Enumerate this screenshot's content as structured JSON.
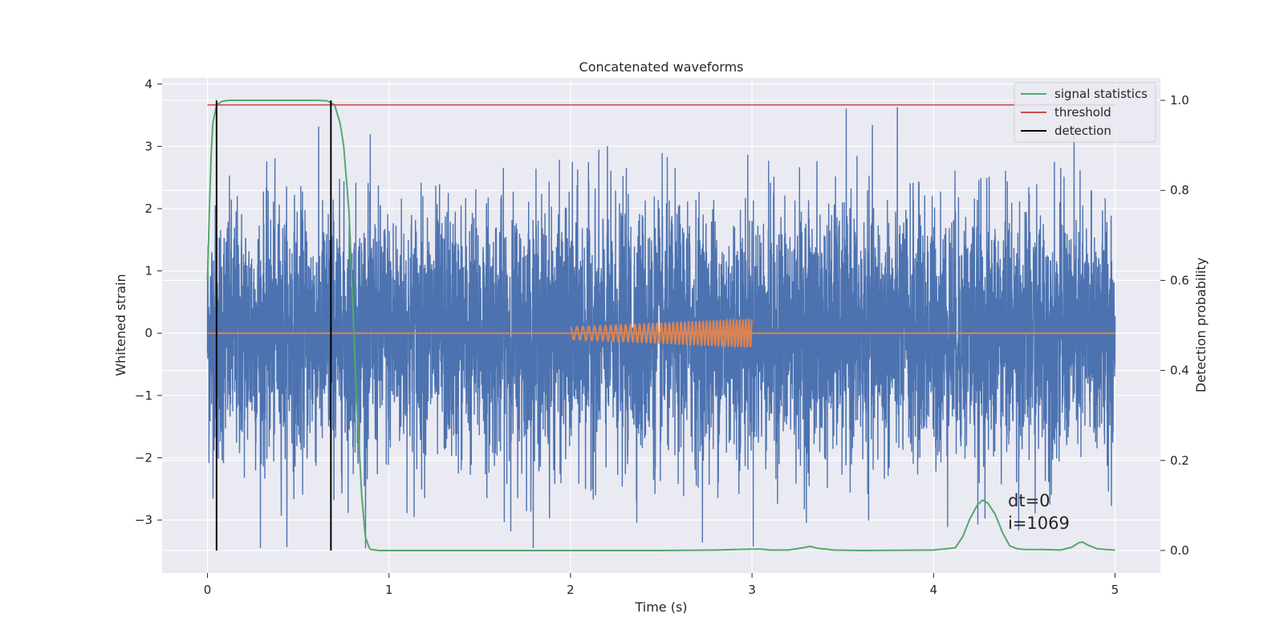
{
  "chart_data": {
    "type": "line",
    "title": "Concatenated waveforms",
    "xlabel": "Time (s)",
    "ylabel_left": "Whitened strain",
    "ylabel_right": "Detection probability",
    "xlim": [
      -0.25,
      5.25
    ],
    "ylim_left": [
      -3.85,
      4.1
    ],
    "ylim_right": [
      -0.05,
      1.05
    ],
    "xticks": [
      0,
      1,
      2,
      3,
      4,
      5
    ],
    "xtick_labels": [
      "0",
      "1",
      "2",
      "3",
      "4",
      "5"
    ],
    "yticks_left": [
      -3,
      -2,
      -1,
      0,
      1,
      2,
      3,
      4
    ],
    "ytick_labels_left": [
      "−3",
      "−2",
      "−1",
      "0",
      "1",
      "2",
      "3",
      "4"
    ],
    "yticks_right": [
      0.0,
      0.2,
      0.4,
      0.6,
      0.8,
      1.0
    ],
    "ytick_labels_right": [
      "0.0",
      "0.2",
      "0.4",
      "0.6",
      "0.8",
      "1.0"
    ],
    "grid": true,
    "legend_position": "top-right",
    "series": [
      {
        "kind": "noise",
        "color": "#4c72b0",
        "axis": "left",
        "x_range": [
          0,
          5
        ],
        "core_amplitude": 1.35,
        "spike_amplitude_range": [
          -3.45,
          3.75
        ]
      },
      {
        "kind": "injected_signal",
        "color": "#dd8452",
        "axis": "left",
        "x_range": [
          0,
          5
        ],
        "chirp_x_range": [
          2.0,
          3.0
        ],
        "chirp_amplitude_range": [
          0.1,
          0.22
        ],
        "chirp_frequency_range_hz": [
          28,
          60
        ]
      },
      {
        "name": "signal statistics",
        "color": "#55a868",
        "axis": "right",
        "x": [
          0,
          0.01,
          0.02,
          0.03,
          0.05,
          0.08,
          0.12,
          0.2,
          0.4,
          0.6,
          0.66,
          0.7,
          0.73,
          0.75,
          0.78,
          0.8,
          0.82,
          0.85,
          0.87,
          0.89,
          0.9,
          0.95,
          1.0,
          1.5,
          2.0,
          2.5,
          2.8,
          3.0,
          3.05,
          3.1,
          3.2,
          3.28,
          3.32,
          3.36,
          3.45,
          3.6,
          4.0,
          4.12,
          4.16,
          4.2,
          4.24,
          4.27,
          4.3,
          4.34,
          4.38,
          4.42,
          4.46,
          4.5,
          4.6,
          4.7,
          4.76,
          4.8,
          4.82,
          4.85,
          4.9,
          4.95,
          5.0
        ],
        "y": [
          0.6,
          0.75,
          0.88,
          0.95,
          0.99,
          0.998,
          1.0,
          1.0,
          1.0,
          1.0,
          0.999,
          0.99,
          0.95,
          0.9,
          0.75,
          0.55,
          0.35,
          0.12,
          0.03,
          0.007,
          0.002,
          0.0,
          0.0,
          0.0,
          0.0,
          0.0,
          0.001,
          0.003,
          0.003,
          0.001,
          0.001,
          0.006,
          0.009,
          0.005,
          0.001,
          0.0,
          0.001,
          0.006,
          0.03,
          0.07,
          0.1,
          0.112,
          0.105,
          0.08,
          0.04,
          0.01,
          0.004,
          0.002,
          0.002,
          0.001,
          0.007,
          0.017,
          0.019,
          0.012,
          0.004,
          0.002,
          0.001
        ]
      },
      {
        "name": "threshold",
        "color": "#c44e52",
        "axis": "right",
        "x": [
          0,
          5
        ],
        "y": [
          0.99,
          0.99
        ]
      },
      {
        "name": "detection",
        "color": "#000000",
        "axis": "right",
        "x": [
          0.05,
          0.68
        ],
        "y_range": [
          0,
          1.0
        ]
      }
    ],
    "annotations": [
      "dt=0",
      "i=1069"
    ],
    "annotation_position": [
      4.5,
      -2.7
    ]
  }
}
